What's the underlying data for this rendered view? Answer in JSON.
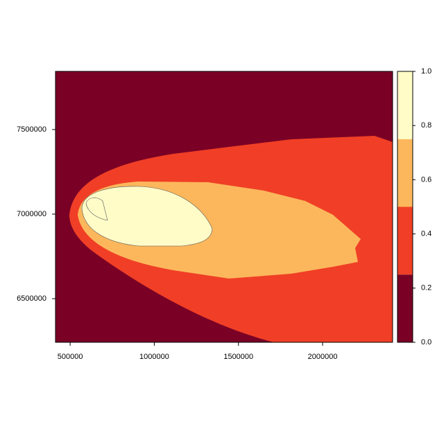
{
  "chart_data": {
    "type": "raster",
    "xlim": [
      413000,
      2416000
    ],
    "ylim": [
      6242000,
      7844000
    ],
    "xticks": [
      500000,
      1000000,
      1500000,
      2000000
    ],
    "yticks": [
      6500000,
      7000000,
      7500000
    ],
    "breaks": [
      0,
      0.25,
      0.5,
      0.75,
      1
    ],
    "colors": [
      "#7a0025",
      "#f03f26",
      "#fcb75c",
      "#fffcc8"
    ],
    "legend_ticks": [
      {
        "value": 0,
        "label": "0.0"
      },
      0.2,
      0.4,
      0.6,
      0.8,
      {
        "value": 1,
        "label": "1.0"
      }
    ]
  }
}
